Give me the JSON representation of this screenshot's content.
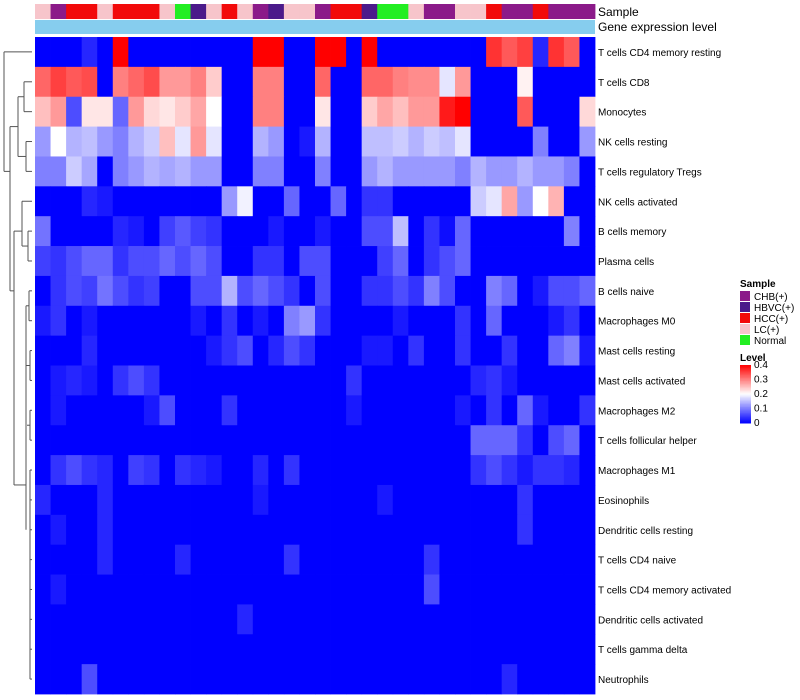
{
  "chart_data": {
    "type": "heatmap",
    "annotation_row_labels": [
      "Sample",
      "Gene expression level"
    ],
    "sample_groups": [
      "LC(+)",
      "CHB(+)",
      "HCC(+)",
      "HCC(+)",
      "LC(+)",
      "HCC(+)",
      "HCC(+)",
      "HCC(+)",
      "LC(+)",
      "Normal",
      "HBVC(+)",
      "LC(+)",
      "HCC(+)",
      "LC(+)",
      "CHB(+)",
      "HBVC(+)",
      "LC(+)",
      "LC(+)",
      "CHB(+)",
      "HCC(+)",
      "HCC(+)",
      "HBVC(+)",
      "Normal",
      "Normal",
      "LC(+)",
      "CHB(+)",
      "CHB(+)",
      "LC(+)",
      "LC(+)",
      "HCC(+)",
      "CHB(+)",
      "CHB(+)",
      "HCC(+)",
      "CHB(+)",
      "CHB(+)",
      "CHB(+)"
    ],
    "sample_colors": {
      "CHB(+)": "#8B1A89",
      "HBVC(+)": "#4B1A8A",
      "HCC(+)": "#F20A0A",
      "LC(+)": "#F7C5CB",
      "Normal": "#22EE22"
    },
    "expression_bar_color": "#86CDEE",
    "rows": [
      "T cells CD4 memory resting",
      "T cells CD8",
      "Monocytes",
      "NK cells resting",
      "T cells regulatory  Tregs",
      "NK cells activated",
      "B cells memory",
      "Plasma cells",
      "B cells naive",
      "Macrophages M0",
      "Mast cells resting",
      "Mast cells activated",
      "Macrophages M2",
      "T cells follicular helper",
      "Macrophages M1",
      "Eosinophils",
      "Dendritic cells resting",
      "T cells CD4 naive",
      "T cells CD4 memory activated",
      "Dendritic cells activated",
      "T cells gamma delta",
      "Neutrophils"
    ],
    "values": [
      [
        0.0,
        0.0,
        0.0,
        0.03,
        0.0,
        0.4,
        0.0,
        0.0,
        0.0,
        0.0,
        0.0,
        0.0,
        0.0,
        0.0,
        0.4,
        0.4,
        0.0,
        0.0,
        0.4,
        0.4,
        0.0,
        0.4,
        0.0,
        0.0,
        0.0,
        0.0,
        0.0,
        0.0,
        0.0,
        0.36,
        0.33,
        0.35,
        0.03,
        0.36,
        0.33,
        0.0
      ],
      [
        0.32,
        0.35,
        0.33,
        0.34,
        0.0,
        0.3,
        0.32,
        0.34,
        0.28,
        0.28,
        0.3,
        0.24,
        0.0,
        0.0,
        0.3,
        0.3,
        0.0,
        0.0,
        0.32,
        0.0,
        0.0,
        0.32,
        0.32,
        0.3,
        0.29,
        0.29,
        0.18,
        0.28,
        0.0,
        0.0,
        0.0,
        0.21,
        0.0,
        0.0,
        0.0,
        0.0
      ],
      [
        0.25,
        0.28,
        0.06,
        0.22,
        0.22,
        0.08,
        0.28,
        0.23,
        0.22,
        0.24,
        0.27,
        0.2,
        0.0,
        0.0,
        0.3,
        0.3,
        0.0,
        0.0,
        0.22,
        0.0,
        0.0,
        0.24,
        0.27,
        0.25,
        0.28,
        0.28,
        0.38,
        0.4,
        0.0,
        0.0,
        0.0,
        0.33,
        0.0,
        0.0,
        0.0,
        0.23
      ],
      [
        0.12,
        0.2,
        0.14,
        0.15,
        0.12,
        0.1,
        0.14,
        0.16,
        0.25,
        0.18,
        0.28,
        0.18,
        0.0,
        0.0,
        0.14,
        0.12,
        0.0,
        0.02,
        0.14,
        0.0,
        0.0,
        0.15,
        0.15,
        0.16,
        0.14,
        0.16,
        0.15,
        0.18,
        0.0,
        0.0,
        0.0,
        0.0,
        0.1,
        0.0,
        0.0,
        0.12
      ],
      [
        0.1,
        0.1,
        0.16,
        0.13,
        0.0,
        0.1,
        0.12,
        0.14,
        0.13,
        0.14,
        0.12,
        0.12,
        0.0,
        0.0,
        0.1,
        0.1,
        0.0,
        0.0,
        0.1,
        0.0,
        0.0,
        0.12,
        0.14,
        0.12,
        0.12,
        0.12,
        0.12,
        0.1,
        0.14,
        0.12,
        0.12,
        0.14,
        0.12,
        0.12,
        0.1,
        0.0
      ],
      [
        0.0,
        0.0,
        0.0,
        0.03,
        0.02,
        0.0,
        0.0,
        0.0,
        0.0,
        0.0,
        0.0,
        0.0,
        0.12,
        0.19,
        0.0,
        0.0,
        0.08,
        0.0,
        0.0,
        0.08,
        0.0,
        0.04,
        0.04,
        0.0,
        0.0,
        0.0,
        0.0,
        0.0,
        0.16,
        0.18,
        0.27,
        0.12,
        0.2,
        0.26,
        0.0,
        0.0
      ],
      [
        0.09,
        0.0,
        0.0,
        0.0,
        0.0,
        0.03,
        0.02,
        0.0,
        0.05,
        0.07,
        0.05,
        0.04,
        0.0,
        0.0,
        0.0,
        0.02,
        0.0,
        0.0,
        0.02,
        0.0,
        0.0,
        0.06,
        0.06,
        0.15,
        0.0,
        0.04,
        0.01,
        0.08,
        0.0,
        0.0,
        0.0,
        0.0,
        0.0,
        0.0,
        0.1,
        0.0
      ],
      [
        0.05,
        0.04,
        0.06,
        0.08,
        0.08,
        0.04,
        0.06,
        0.06,
        0.08,
        0.06,
        0.08,
        0.06,
        0.0,
        0.0,
        0.04,
        0.04,
        0.0,
        0.06,
        0.06,
        0.0,
        0.0,
        0.0,
        0.05,
        0.08,
        0.0,
        0.04,
        0.06,
        0.08,
        0.0,
        0.0,
        0.0,
        0.0,
        0.0,
        0.0,
        0.0,
        0.0
      ],
      [
        0.0,
        0.04,
        0.06,
        0.05,
        0.09,
        0.06,
        0.04,
        0.05,
        0.0,
        0.0,
        0.06,
        0.06,
        0.14,
        0.06,
        0.08,
        0.06,
        0.04,
        0.0,
        0.06,
        0.0,
        0.0,
        0.04,
        0.04,
        0.06,
        0.04,
        0.1,
        0.06,
        0.0,
        0.0,
        0.1,
        0.08,
        0.0,
        0.02,
        0.06,
        0.06,
        0.08
      ],
      [
        0.02,
        0.04,
        0.0,
        0.02,
        0.0,
        0.0,
        0.0,
        0.0,
        0.0,
        0.0,
        0.02,
        0.0,
        0.04,
        0.0,
        0.02,
        0.0,
        0.1,
        0.12,
        0.04,
        0.0,
        0.0,
        0.0,
        0.0,
        0.02,
        0.0,
        0.0,
        0.0,
        0.04,
        0.0,
        0.08,
        0.0,
        0.0,
        0.0,
        0.02,
        0.04,
        0.0
      ],
      [
        0.0,
        0.0,
        0.0,
        0.03,
        0.0,
        0.0,
        0.0,
        0.0,
        0.0,
        0.0,
        0.0,
        0.02,
        0.04,
        0.06,
        0.0,
        0.03,
        0.06,
        0.04,
        0.0,
        0.0,
        0.0,
        0.02,
        0.02,
        0.0,
        0.04,
        0.0,
        0.0,
        0.04,
        0.0,
        0.0,
        0.04,
        0.0,
        0.0,
        0.08,
        0.1,
        0.02
      ],
      [
        0.0,
        0.02,
        0.03,
        0.02,
        0.0,
        0.04,
        0.06,
        0.04,
        0.0,
        0.0,
        0.0,
        0.0,
        0.0,
        0.0,
        0.0,
        0.0,
        0.0,
        0.0,
        0.0,
        0.0,
        0.04,
        0.0,
        0.0,
        0.0,
        0.0,
        0.0,
        0.0,
        0.0,
        0.03,
        0.04,
        0.02,
        0.0,
        0.0,
        0.0,
        0.0,
        0.0
      ],
      [
        0.0,
        0.02,
        0.0,
        0.0,
        0.0,
        0.0,
        0.0,
        0.02,
        0.06,
        0.0,
        0.0,
        0.0,
        0.04,
        0.0,
        0.0,
        0.0,
        0.0,
        0.0,
        0.0,
        0.0,
        0.02,
        0.0,
        0.0,
        0.0,
        0.0,
        0.0,
        0.0,
        0.02,
        0.0,
        0.04,
        0.0,
        0.08,
        0.02,
        0.0,
        0.0,
        0.04
      ],
      [
        0.0,
        0.0,
        0.0,
        0.0,
        0.0,
        0.0,
        0.0,
        0.0,
        0.0,
        0.0,
        0.0,
        0.0,
        0.0,
        0.0,
        0.0,
        0.0,
        0.0,
        0.0,
        0.0,
        0.0,
        0.0,
        0.0,
        0.0,
        0.0,
        0.0,
        0.0,
        0.0,
        0.0,
        0.08,
        0.08,
        0.08,
        0.04,
        0.0,
        0.06,
        0.08,
        0.0
      ],
      [
        0.0,
        0.04,
        0.06,
        0.04,
        0.03,
        0.0,
        0.05,
        0.04,
        0.0,
        0.04,
        0.03,
        0.02,
        0.0,
        0.0,
        0.03,
        0.0,
        0.04,
        0.0,
        0.0,
        0.0,
        0.0,
        0.0,
        0.0,
        0.0,
        0.0,
        0.0,
        0.0,
        0.0,
        0.04,
        0.06,
        0.04,
        0.02,
        0.04,
        0.04,
        0.03,
        0.0
      ],
      [
        0.03,
        0.0,
        0.0,
        0.0,
        0.03,
        0.0,
        0.0,
        0.0,
        0.0,
        0.0,
        0.0,
        0.0,
        0.0,
        0.0,
        0.02,
        0.0,
        0.0,
        0.0,
        0.0,
        0.0,
        0.0,
        0.0,
        0.02,
        0.0,
        0.0,
        0.0,
        0.0,
        0.0,
        0.0,
        0.0,
        0.0,
        0.04,
        0.0,
        0.0,
        0.0,
        0.0
      ],
      [
        0.0,
        0.02,
        0.0,
        0.0,
        0.03,
        0.0,
        0.0,
        0.0,
        0.0,
        0.0,
        0.0,
        0.0,
        0.0,
        0.0,
        0.0,
        0.0,
        0.0,
        0.0,
        0.0,
        0.0,
        0.0,
        0.0,
        0.0,
        0.0,
        0.0,
        0.0,
        0.0,
        0.0,
        0.0,
        0.0,
        0.0,
        0.04,
        0.0,
        0.0,
        0.0,
        0.0
      ],
      [
        0.0,
        0.0,
        0.0,
        0.0,
        0.03,
        0.0,
        0.0,
        0.0,
        0.0,
        0.03,
        0.0,
        0.0,
        0.0,
        0.0,
        0.0,
        0.0,
        0.04,
        0.0,
        0.0,
        0.0,
        0.0,
        0.0,
        0.0,
        0.0,
        0.0,
        0.04,
        0.0,
        0.0,
        0.0,
        0.0,
        0.0,
        0.0,
        0.0,
        0.0,
        0.0,
        0.0
      ],
      [
        0.0,
        0.02,
        0.0,
        0.0,
        0.0,
        0.0,
        0.0,
        0.0,
        0.0,
        0.0,
        0.0,
        0.0,
        0.0,
        0.0,
        0.0,
        0.0,
        0.0,
        0.0,
        0.0,
        0.0,
        0.0,
        0.0,
        0.0,
        0.0,
        0.0,
        0.06,
        0.0,
        0.0,
        0.0,
        0.0,
        0.0,
        0.0,
        0.0,
        0.0,
        0.0,
        0.0
      ],
      [
        0.0,
        0.0,
        0.0,
        0.0,
        0.0,
        0.0,
        0.0,
        0.0,
        0.0,
        0.0,
        0.0,
        0.0,
        0.0,
        0.03,
        0.0,
        0.0,
        0.0,
        0.0,
        0.0,
        0.0,
        0.0,
        0.0,
        0.0,
        0.0,
        0.0,
        0.0,
        0.0,
        0.0,
        0.0,
        0.0,
        0.0,
        0.0,
        0.0,
        0.0,
        0.0,
        0.0
      ],
      [
        0.0,
        0.0,
        0.0,
        0.0,
        0.0,
        0.0,
        0.0,
        0.0,
        0.0,
        0.0,
        0.0,
        0.0,
        0.0,
        0.0,
        0.0,
        0.0,
        0.0,
        0.0,
        0.0,
        0.0,
        0.0,
        0.0,
        0.0,
        0.0,
        0.0,
        0.0,
        0.0,
        0.0,
        0.0,
        0.0,
        0.0,
        0.0,
        0.0,
        0.0,
        0.0,
        0.0
      ],
      [
        0.0,
        0.0,
        0.0,
        0.06,
        0.0,
        0.0,
        0.0,
        0.0,
        0.0,
        0.0,
        0.0,
        0.0,
        0.0,
        0.0,
        0.0,
        0.0,
        0.0,
        0.0,
        0.0,
        0.0,
        0.0,
        0.0,
        0.0,
        0.0,
        0.0,
        0.0,
        0.0,
        0.0,
        0.0,
        0.0,
        0.03,
        0.0,
        0.0,
        0.0,
        0.0,
        0.0
      ]
    ],
    "legend_sample_title": "Sample",
    "legend_level_title": "Level",
    "legend_level_ticks": [
      "0.4",
      "0.3",
      "0.2",
      "0.1",
      "0"
    ],
    "level_range": [
      0,
      0.4
    ],
    "color_scale": {
      "low": "#0000FF",
      "mid": "#FFFFFF",
      "high": "#FF0000"
    }
  }
}
